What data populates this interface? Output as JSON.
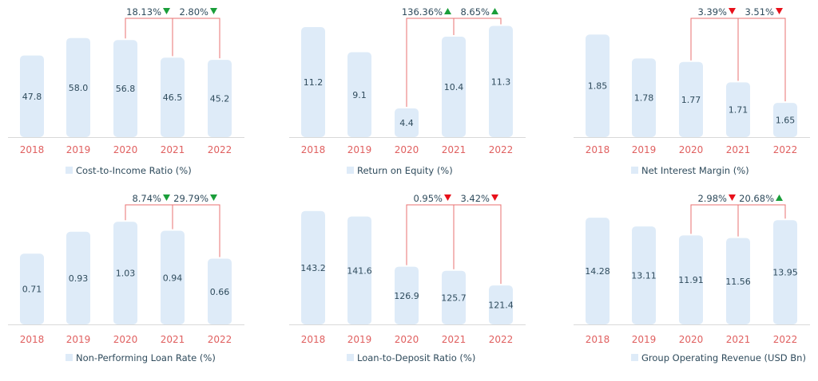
{
  "colors": {
    "bar": "#deebf8",
    "axis": "#d9d9d9",
    "year": "#e06060",
    "bracket": "#e87070",
    "up_good": "#1a9e3a",
    "down_bad": "#e8101a",
    "text": "#2f4b5c"
  },
  "chart_data": [
    {
      "type": "bar",
      "title": "Cost-to-Income Ratio (%)",
      "categories": [
        "2018",
        "2019",
        "2020",
        "2021",
        "2022"
      ],
      "values": [
        "47.8",
        "58.0",
        "56.8",
        "46.5",
        "45.2"
      ],
      "ylim": [
        0,
        70
      ],
      "changes": [
        {
          "label": "18.13%",
          "direction": "down",
          "color": "#1a9e3a"
        },
        {
          "label": "2.80%",
          "direction": "down",
          "color": "#1a9e3a"
        }
      ]
    },
    {
      "type": "bar",
      "title": "Return on Equity (%)",
      "categories": [
        "2018",
        "2019",
        "2020",
        "2021",
        "2022"
      ],
      "values": [
        "11.2",
        "9.1",
        "4.4",
        "10.4",
        "11.3"
      ],
      "ylim": [
        2,
        12
      ],
      "changes": [
        {
          "label": "136.36%",
          "direction": "up",
          "color": "#1a9e3a"
        },
        {
          "label": "8.65%",
          "direction": "up",
          "color": "#1a9e3a"
        }
      ]
    },
    {
      "type": "bar",
      "title": "Net Interest Margin (%)",
      "categories": [
        "2018",
        "2019",
        "2020",
        "2021",
        "2022"
      ],
      "values": [
        "1.85",
        "1.78",
        "1.77",
        "1.71",
        "1.65"
      ],
      "ylim": [
        1.55,
        1.9
      ],
      "changes": [
        {
          "label": "3.39%",
          "direction": "down",
          "color": "#e8101a"
        },
        {
          "label": "3.51%",
          "direction": "down",
          "color": "#e8101a"
        }
      ]
    },
    {
      "type": "bar",
      "title": "Non-Performing Loan Rate (%)",
      "categories": [
        "2018",
        "2019",
        "2020",
        "2021",
        "2022"
      ],
      "values": [
        "0.71",
        "0.93",
        "1.03",
        "0.94",
        "0.66"
      ],
      "ylim": [
        0,
        1.2
      ],
      "changes": [
        {
          "label": "8.74%",
          "direction": "down",
          "color": "#1a9e3a"
        },
        {
          "label": "29.79%",
          "direction": "down",
          "color": "#1a9e3a"
        }
      ]
    },
    {
      "type": "bar",
      "title": "Loan-to-Deposit Ratio (%)",
      "categories": [
        "2018",
        "2019",
        "2020",
        "2021",
        "2022"
      ],
      "values": [
        "143.2",
        "141.6",
        "126.9",
        "125.7",
        "121.4"
      ],
      "ylim": [
        110,
        145
      ],
      "changes": [
        {
          "label": "0.95%",
          "direction": "down",
          "color": "#e8101a"
        },
        {
          "label": "3.42%",
          "direction": "down",
          "color": "#e8101a"
        }
      ]
    },
    {
      "type": "bar",
      "title": "Group Operating Revenue (USD Bn)",
      "categories": [
        "2018",
        "2019",
        "2020",
        "2021",
        "2022"
      ],
      "values": [
        "14.28",
        "13.11",
        "11.91",
        "11.56",
        "13.95"
      ],
      "ylim": [
        0,
        16
      ],
      "changes": [
        {
          "label": "2.98%",
          "direction": "down",
          "color": "#e8101a"
        },
        {
          "label": "20.68%",
          "direction": "up",
          "color": "#1a9e3a"
        }
      ]
    }
  ]
}
